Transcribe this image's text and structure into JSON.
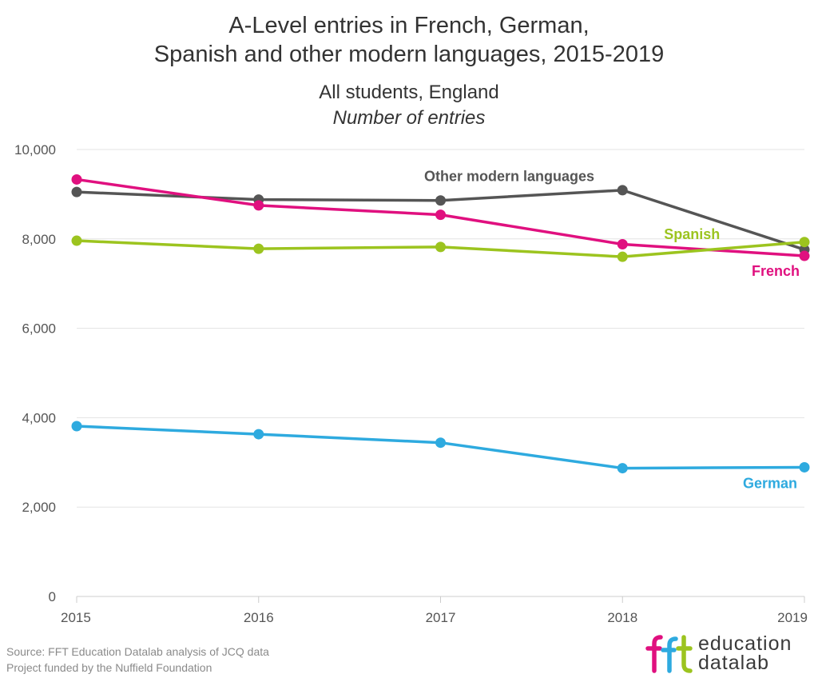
{
  "title": {
    "line1": "A-Level entries in French, German,",
    "line2": "Spanish and other modern languages, 2015-2019"
  },
  "subtitle": "All students, England",
  "subtitle_italic": "Number of entries",
  "chart_data": {
    "type": "line",
    "title": "A-Level entries in French, German, Spanish and other modern languages, 2015-2019",
    "subtitle": "All students, England — Number of entries",
    "x": [
      "2015",
      "2016",
      "2017",
      "2018",
      "2019"
    ],
    "ylim": [
      0,
      10000
    ],
    "yticks": [
      0,
      2000,
      4000,
      6000,
      8000,
      10000
    ],
    "ytick_labels": [
      "0",
      "2,000",
      "4,000",
      "6,000",
      "8,000",
      "10,000"
    ],
    "grid": true,
    "xlabel": "",
    "ylabel": "",
    "series": [
      {
        "name": "Other modern languages",
        "color": "#555555",
        "values": [
          9050,
          8880,
          8860,
          9090,
          7760
        ]
      },
      {
        "name": "French",
        "color": "#e0107f",
        "values": [
          9330,
          8750,
          8540,
          7880,
          7620
        ]
      },
      {
        "name": "Spanish",
        "color": "#9cc41f",
        "values": [
          7960,
          7780,
          7820,
          7600,
          7930
        ]
      },
      {
        "name": "German",
        "color": "#2eaadf",
        "values": [
          3810,
          3630,
          3440,
          2870,
          2890
        ]
      }
    ]
  },
  "footer": {
    "source": "Source: FFT Education Datalab analysis of JCQ data",
    "funding": "Project funded by the Nuffield Foundation"
  },
  "logo": {
    "line1": "education",
    "line2": "datalab",
    "colors": {
      "f1": "#e0107f",
      "f2": "#2eaadf",
      "t": "#9cc41f"
    }
  }
}
